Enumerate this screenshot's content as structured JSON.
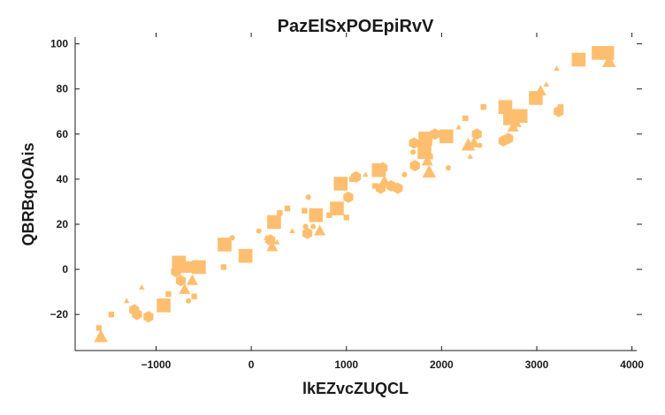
{
  "chart_data": {
    "type": "scatter",
    "title": "PazElSxPOEpiRvV",
    "xlabel": "lkEZvcZUQCL",
    "ylabel": "QBRBqoOAis",
    "xlim": [
      -1850,
      4050
    ],
    "ylim": [
      -36,
      103
    ],
    "xticks": [
      -1000,
      0,
      1000,
      2000,
      3000,
      4000
    ],
    "xtick_labels": [
      "−1000",
      "0",
      "1000",
      "2000",
      "3000",
      "4000"
    ],
    "yticks": [
      -20,
      0,
      20,
      40,
      60,
      80,
      100
    ],
    "ytick_labels": [
      "−20",
      "0",
      "20",
      "40",
      "60",
      "80",
      "100"
    ],
    "grid": false,
    "color": "#fdbf6f",
    "points": [
      {
        "x": -1580,
        "y": -30,
        "marker": "triangle",
        "size": "large"
      },
      {
        "x": -1600,
        "y": -26,
        "marker": "square",
        "size": "small"
      },
      {
        "x": -1470,
        "y": -20,
        "marker": "square",
        "size": "small"
      },
      {
        "x": -1310,
        "y": -14,
        "marker": "triangle",
        "size": "small"
      },
      {
        "x": -1230,
        "y": -18,
        "marker": "hexagon",
        "size": "medium"
      },
      {
        "x": -1200,
        "y": -20,
        "marker": "hexagon",
        "size": "medium"
      },
      {
        "x": -1150,
        "y": -8,
        "marker": "triangle",
        "size": "small"
      },
      {
        "x": -1080,
        "y": -21,
        "marker": "hexagon",
        "size": "medium"
      },
      {
        "x": -920,
        "y": -16,
        "marker": "square",
        "size": "large"
      },
      {
        "x": -870,
        "y": -11,
        "marker": "square",
        "size": "small"
      },
      {
        "x": -790,
        "y": -1,
        "marker": "hexagon",
        "size": "medium"
      },
      {
        "x": -760,
        "y": 3,
        "marker": "square",
        "size": "large"
      },
      {
        "x": -740,
        "y": -5,
        "marker": "hexagon",
        "size": "medium"
      },
      {
        "x": -700,
        "y": -9,
        "marker": "triangle",
        "size": "medium"
      },
      {
        "x": -680,
        "y": 1,
        "marker": "square",
        "size": "medium"
      },
      {
        "x": -660,
        "y": -14,
        "marker": "circle",
        "size": "small"
      },
      {
        "x": -620,
        "y": -5,
        "marker": "triangle",
        "size": "medium"
      },
      {
        "x": -600,
        "y": -12,
        "marker": "square",
        "size": "small"
      },
      {
        "x": -550,
        "y": 1,
        "marker": "square",
        "size": "large"
      },
      {
        "x": -280,
        "y": 11,
        "marker": "square",
        "size": "large"
      },
      {
        "x": -290,
        "y": 1,
        "marker": "square",
        "size": "small"
      },
      {
        "x": -200,
        "y": 14,
        "marker": "circle",
        "size": "small"
      },
      {
        "x": -60,
        "y": 6,
        "marker": "square",
        "size": "large"
      },
      {
        "x": 80,
        "y": 17,
        "marker": "circle",
        "size": "small"
      },
      {
        "x": 160,
        "y": 14,
        "marker": "triangle",
        "size": "small"
      },
      {
        "x": 200,
        "y": 13,
        "marker": "hexagon",
        "size": "medium"
      },
      {
        "x": 220,
        "y": 10,
        "marker": "triangle",
        "size": "medium"
      },
      {
        "x": 240,
        "y": 21,
        "marker": "square",
        "size": "large"
      },
      {
        "x": 270,
        "y": 12,
        "marker": "triangle",
        "size": "small"
      },
      {
        "x": 300,
        "y": 25,
        "marker": "square",
        "size": "small"
      },
      {
        "x": 380,
        "y": 27,
        "marker": "square",
        "size": "small"
      },
      {
        "x": 430,
        "y": 17,
        "marker": "triangle",
        "size": "small"
      },
      {
        "x": 560,
        "y": 26,
        "marker": "square",
        "size": "small"
      },
      {
        "x": 570,
        "y": 19,
        "marker": "circle",
        "size": "small"
      },
      {
        "x": 590,
        "y": 16,
        "marker": "hexagon",
        "size": "medium"
      },
      {
        "x": 600,
        "y": 32,
        "marker": "circle",
        "size": "small"
      },
      {
        "x": 650,
        "y": 19,
        "marker": "circle",
        "size": "small"
      },
      {
        "x": 680,
        "y": 24,
        "marker": "square",
        "size": "large"
      },
      {
        "x": 720,
        "y": 17,
        "marker": "triangle",
        "size": "medium"
      },
      {
        "x": 820,
        "y": 24,
        "marker": "square",
        "size": "small"
      },
      {
        "x": 900,
        "y": 27,
        "marker": "square",
        "size": "large"
      },
      {
        "x": 940,
        "y": 38,
        "marker": "square",
        "size": "large"
      },
      {
        "x": 1000,
        "y": 23,
        "marker": "square",
        "size": "small"
      },
      {
        "x": 1020,
        "y": 32,
        "marker": "hexagon",
        "size": "medium"
      },
      {
        "x": 1060,
        "y": 40,
        "marker": "square",
        "size": "small"
      },
      {
        "x": 1100,
        "y": 41,
        "marker": "hexagon",
        "size": "medium"
      },
      {
        "x": 1200,
        "y": 42,
        "marker": "triangle",
        "size": "small"
      },
      {
        "x": 1300,
        "y": 37,
        "marker": "square",
        "size": "small"
      },
      {
        "x": 1340,
        "y": 44,
        "marker": "square",
        "size": "large"
      },
      {
        "x": 1360,
        "y": 36,
        "marker": "hexagon",
        "size": "medium"
      },
      {
        "x": 1380,
        "y": 45,
        "marker": "hexagon",
        "size": "medium"
      },
      {
        "x": 1400,
        "y": 39,
        "marker": "triangle",
        "size": "medium"
      },
      {
        "x": 1470,
        "y": 37,
        "marker": "hexagon",
        "size": "medium"
      },
      {
        "x": 1540,
        "y": 36,
        "marker": "hexagon",
        "size": "medium"
      },
      {
        "x": 1610,
        "y": 42,
        "marker": "circle",
        "size": "small"
      },
      {
        "x": 1700,
        "y": 52,
        "marker": "circle",
        "size": "small"
      },
      {
        "x": 1710,
        "y": 56,
        "marker": "hexagon",
        "size": "medium"
      },
      {
        "x": 1720,
        "y": 46,
        "marker": "hexagon",
        "size": "medium"
      },
      {
        "x": 1790,
        "y": 54,
        "marker": "triangle",
        "size": "small"
      },
      {
        "x": 1820,
        "y": 52,
        "marker": "square",
        "size": "large"
      },
      {
        "x": 1830,
        "y": 58,
        "marker": "square",
        "size": "large"
      },
      {
        "x": 1850,
        "y": 48,
        "marker": "triangle",
        "size": "medium"
      },
      {
        "x": 1870,
        "y": 43,
        "marker": "triangle",
        "size": "large"
      },
      {
        "x": 1880,
        "y": 50,
        "marker": "square",
        "size": "small"
      },
      {
        "x": 1900,
        "y": 59,
        "marker": "circle",
        "size": "small"
      },
      {
        "x": 1930,
        "y": 60,
        "marker": "hexagon",
        "size": "medium"
      },
      {
        "x": 2050,
        "y": 59,
        "marker": "square",
        "size": "large"
      },
      {
        "x": 2070,
        "y": 45,
        "marker": "circle",
        "size": "small"
      },
      {
        "x": 2180,
        "y": 63,
        "marker": "triangle",
        "size": "small"
      },
      {
        "x": 2250,
        "y": 67,
        "marker": "square",
        "size": "small"
      },
      {
        "x": 2280,
        "y": 55,
        "marker": "triangle",
        "size": "large"
      },
      {
        "x": 2300,
        "y": 50,
        "marker": "triangle",
        "size": "small"
      },
      {
        "x": 2340,
        "y": 56,
        "marker": "triangle",
        "size": "medium"
      },
      {
        "x": 2370,
        "y": 60,
        "marker": "hexagon",
        "size": "medium"
      },
      {
        "x": 2400,
        "y": 55,
        "marker": "circle",
        "size": "small"
      },
      {
        "x": 2440,
        "y": 72,
        "marker": "square",
        "size": "small"
      },
      {
        "x": 2650,
        "y": 57,
        "marker": "hexagon",
        "size": "medium"
      },
      {
        "x": 2670,
        "y": 72,
        "marker": "square",
        "size": "large"
      },
      {
        "x": 2700,
        "y": 58,
        "marker": "hexagon",
        "size": "medium"
      },
      {
        "x": 2720,
        "y": 67,
        "marker": "square",
        "size": "large"
      },
      {
        "x": 2750,
        "y": 63,
        "marker": "triangle",
        "size": "medium"
      },
      {
        "x": 2760,
        "y": 70,
        "marker": "circle",
        "size": "small"
      },
      {
        "x": 2780,
        "y": 65,
        "marker": "triangle",
        "size": "medium"
      },
      {
        "x": 2830,
        "y": 68,
        "marker": "square",
        "size": "large"
      },
      {
        "x": 2990,
        "y": 76,
        "marker": "square",
        "size": "large"
      },
      {
        "x": 3040,
        "y": 79,
        "marker": "triangle",
        "size": "medium"
      },
      {
        "x": 3100,
        "y": 82,
        "marker": "triangle",
        "size": "small"
      },
      {
        "x": 3210,
        "y": 89,
        "marker": "triangle",
        "size": "small"
      },
      {
        "x": 3230,
        "y": 70,
        "marker": "hexagon",
        "size": "medium"
      },
      {
        "x": 3250,
        "y": 72,
        "marker": "square",
        "size": "small"
      },
      {
        "x": 3440,
        "y": 93,
        "marker": "square",
        "size": "large"
      },
      {
        "x": 3650,
        "y": 96,
        "marker": "square",
        "size": "large"
      },
      {
        "x": 3740,
        "y": 96,
        "marker": "square",
        "size": "large"
      },
      {
        "x": 3760,
        "y": 92,
        "marker": "triangle",
        "size": "large"
      }
    ]
  }
}
